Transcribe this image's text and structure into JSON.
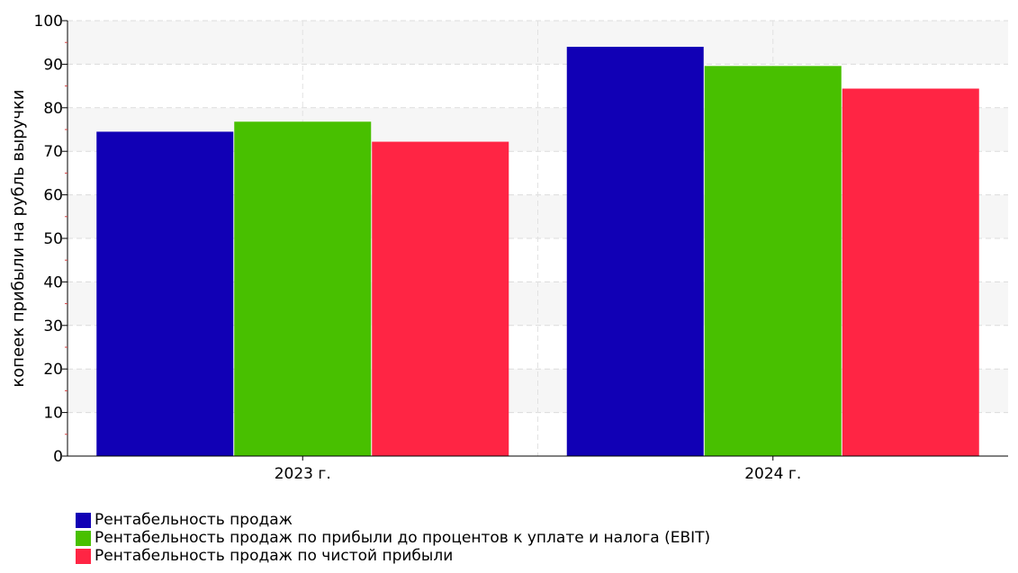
{
  "chart_data": {
    "type": "bar",
    "categories": [
      "2023 г.",
      "2024 г."
    ],
    "series": [
      {
        "name": "Рентабельность продаж",
        "color": "#1100b5",
        "values": [
          74.5,
          94.0
        ]
      },
      {
        "name": "Рентабельность продаж по прибыли до процентов к уплате и налога (EBIT)",
        "color": "#48c000",
        "values": [
          76.8,
          89.6
        ]
      },
      {
        "name": "Рентабельность продаж по чистой прибыли",
        "color": "#ff2544",
        "values": [
          72.2,
          84.4
        ]
      }
    ],
    "ylabel": "копеек прибыли на рубль выручки",
    "ylim": [
      0,
      100
    ],
    "yticks": [
      0,
      10,
      20,
      30,
      40,
      50,
      60,
      70,
      80,
      90,
      100
    ],
    "grid": true,
    "legend_position": "bottom-left"
  }
}
